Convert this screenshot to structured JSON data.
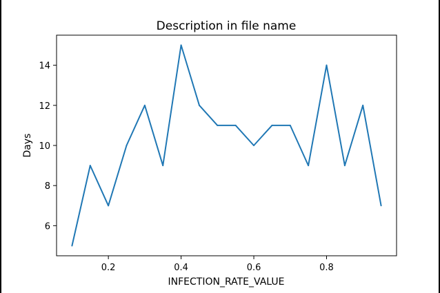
{
  "chart_data": {
    "type": "line",
    "title": "Description in file name",
    "xlabel": "INFECTION_RATE_VALUE",
    "ylabel": "Days",
    "xlim": [
      0.0575,
      0.9925
    ],
    "ylim": [
      4.5,
      15.5
    ],
    "xticks": [
      0.2,
      0.4,
      0.6,
      0.8
    ],
    "xtick_labels": [
      "0.2",
      "0.4",
      "0.6",
      "0.8"
    ],
    "yticks": [
      6,
      8,
      10,
      12,
      14
    ],
    "ytick_labels": [
      "6",
      "8",
      "10",
      "12",
      "14"
    ],
    "grid": false,
    "series": [
      {
        "color": "#1f77b4",
        "x": [
          0.1,
          0.15,
          0.2,
          0.25,
          0.3,
          0.35,
          0.4,
          0.45,
          0.5,
          0.55,
          0.6,
          0.65,
          0.7,
          0.75,
          0.8,
          0.85,
          0.9,
          0.95
        ],
        "y": [
          5,
          9,
          7,
          10,
          12,
          9,
          15,
          12,
          11,
          11,
          10,
          11,
          11,
          9,
          14,
          9,
          12,
          7
        ]
      }
    ]
  }
}
